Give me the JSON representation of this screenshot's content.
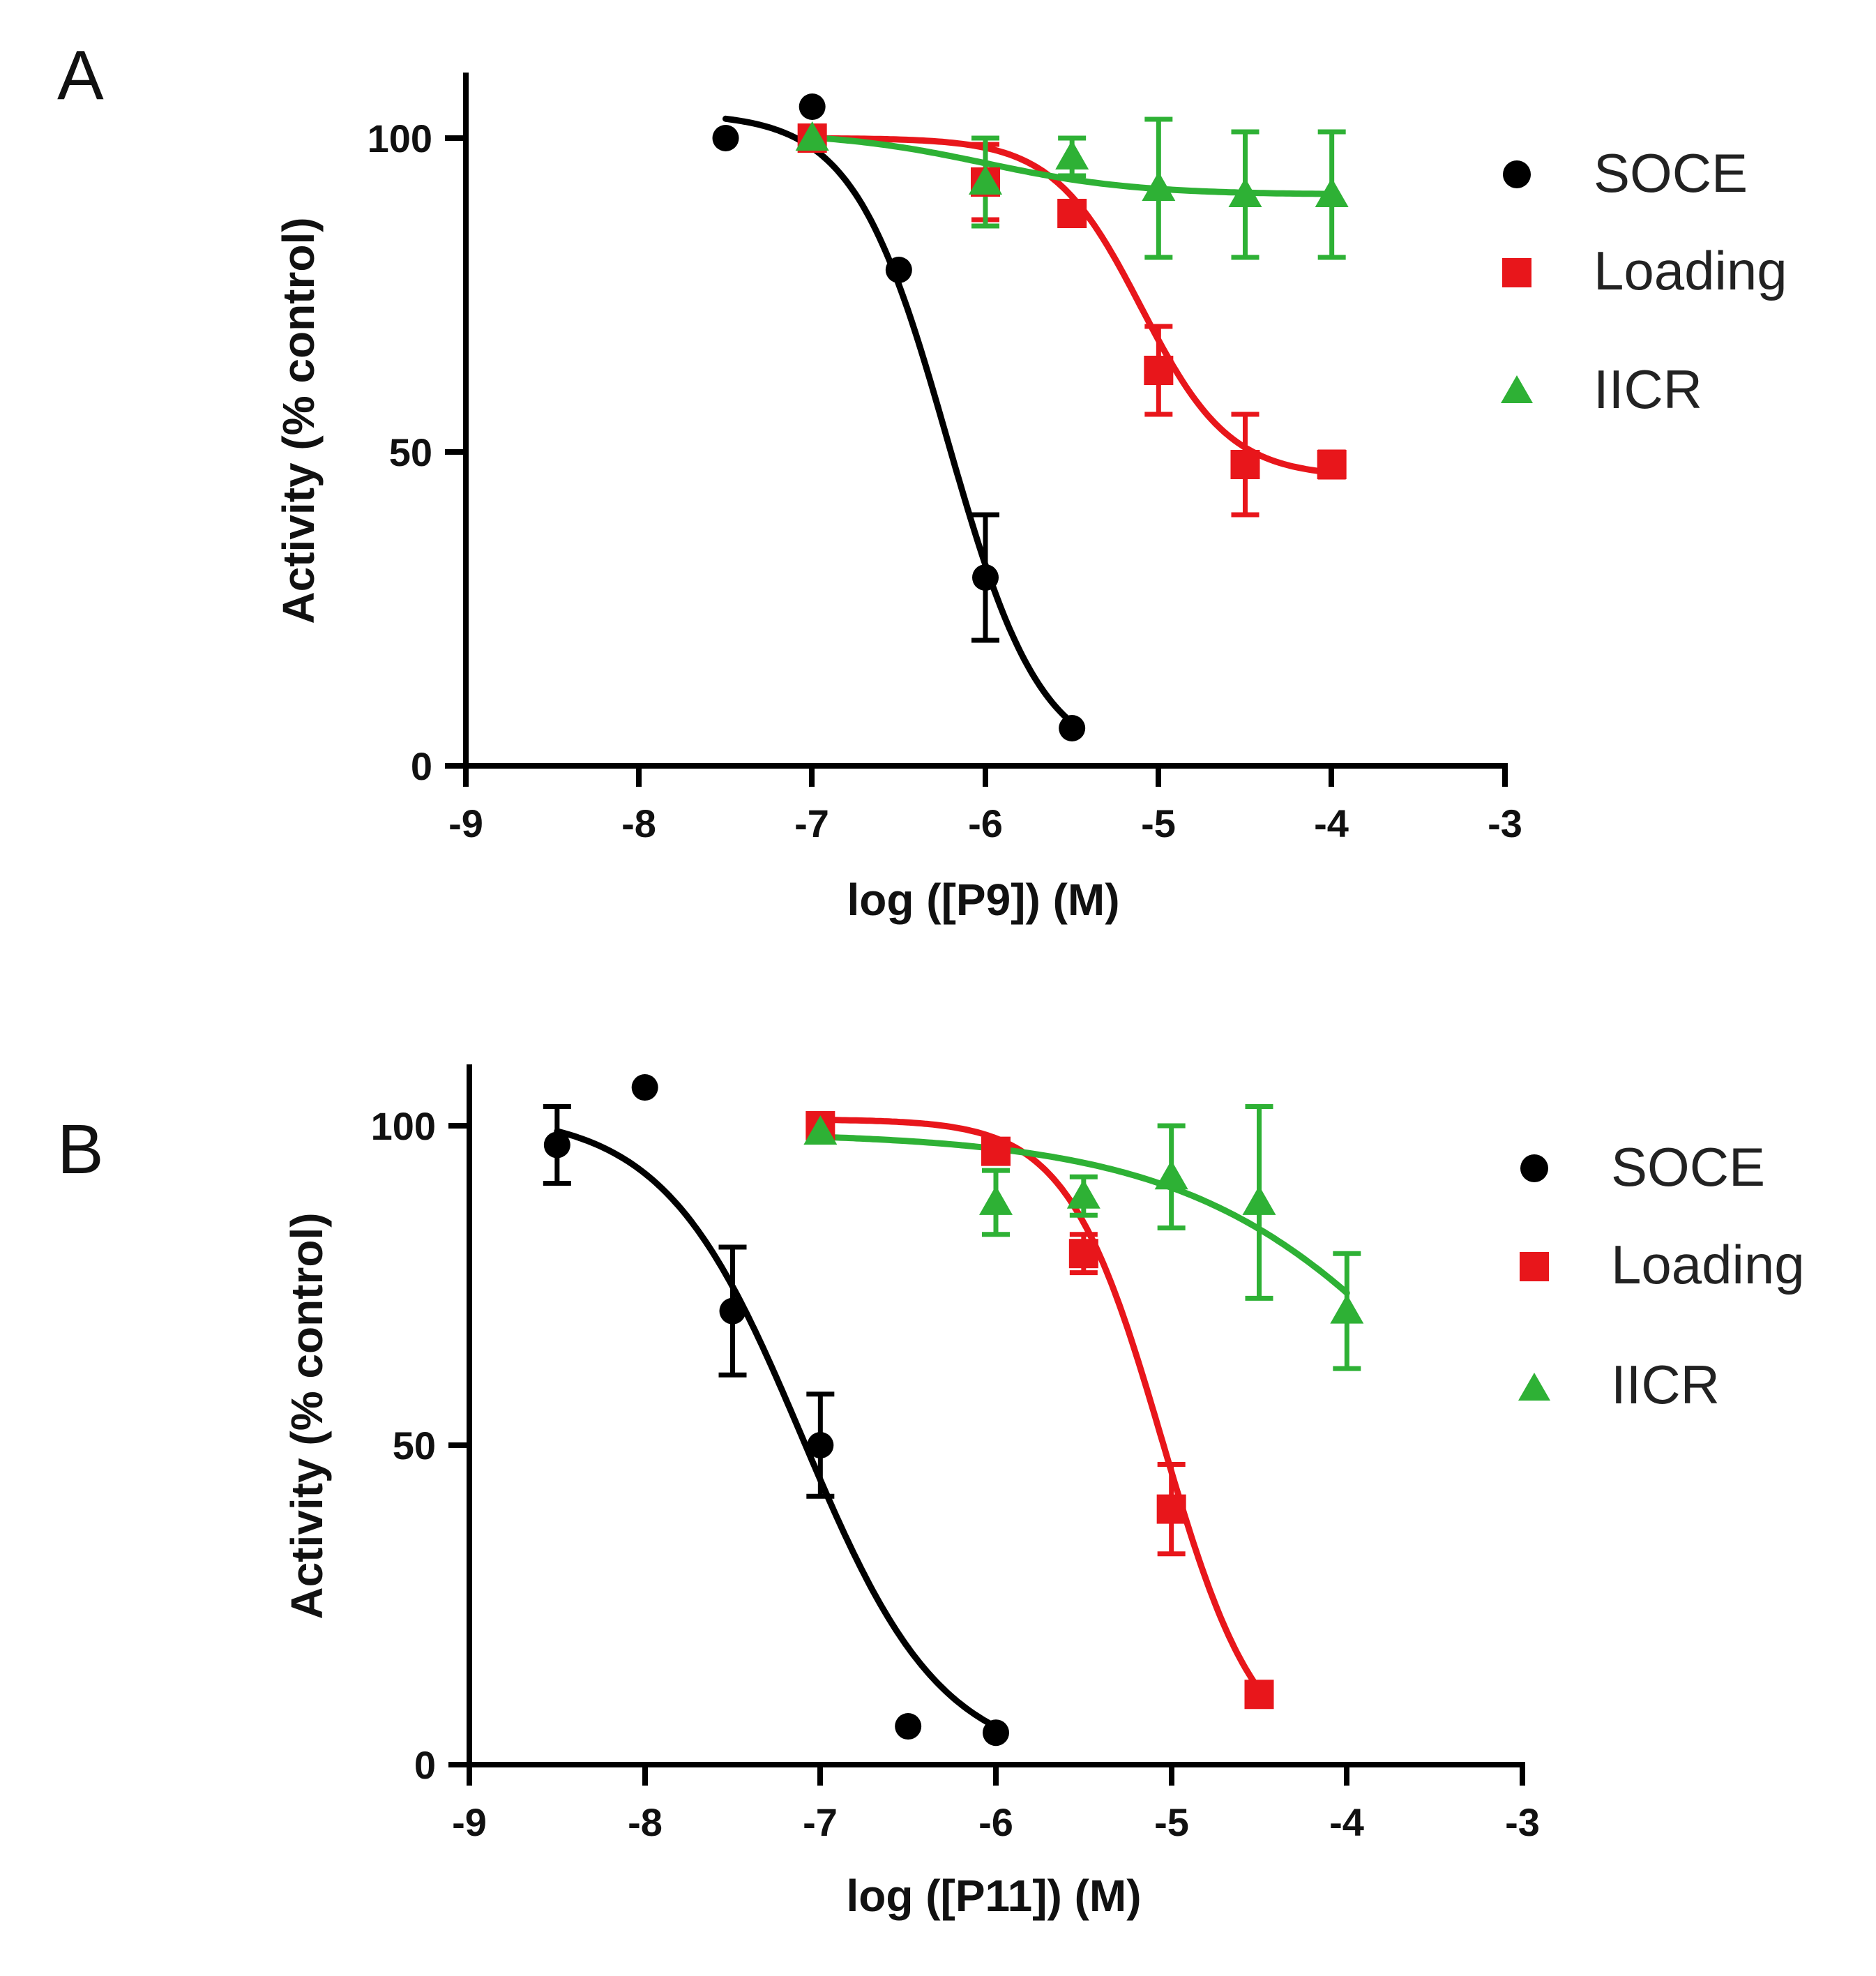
{
  "chart_data": [
    {
      "panel": "A",
      "type": "scatter",
      "xlabel": "log ([P9]) (M)",
      "ylabel": "Activity (% control)",
      "xlim": [
        -9,
        -3
      ],
      "ylim": [
        0,
        110
      ],
      "xticks": [
        -9,
        -8,
        -7,
        -6,
        -5,
        -4,
        -3
      ],
      "yticks": [
        0,
        50,
        100
      ],
      "legend_position": "right",
      "series": [
        {
          "name": "SOCE",
          "color": "#000000",
          "marker": "circle",
          "x": [
            -7.5,
            -7.0,
            -6.5,
            -6.0,
            -5.5
          ],
          "y": [
            100,
            105,
            79,
            30,
            6
          ],
          "err": [
            0,
            0,
            0,
            10,
            0
          ],
          "fit": {
            "top": 104,
            "bottom": 0,
            "logIC50": -6.22,
            "hill": 1.6
          }
        },
        {
          "name": "Loading",
          "color": "#e8161b",
          "marker": "square",
          "x": [
            -7.0,
            -6.0,
            -5.5,
            -5.0,
            -4.5,
            -4.0
          ],
          "y": [
            100,
            93,
            88,
            63,
            48,
            48
          ],
          "err": [
            0,
            6,
            0,
            7,
            8,
            2
          ],
          "fit": {
            "top": 100,
            "bottom": 46,
            "logIC50": -5.1,
            "hill": 1.7
          }
        },
        {
          "name": "IICR",
          "color": "#2eb135",
          "marker": "triangle",
          "x": [
            -7.0,
            -6.0,
            -5.5,
            -5.0,
            -4.5,
            -4.0
          ],
          "y": [
            100,
            93,
            97,
            92,
            91,
            91
          ],
          "err": [
            0,
            7,
            3,
            11,
            10,
            10
          ],
          "fit": {
            "top": 101,
            "bottom": 91,
            "logIC50": -6.0,
            "hill": 1.0
          }
        }
      ]
    },
    {
      "panel": "B",
      "type": "scatter",
      "xlabel": "log ([P11]) (M)",
      "ylabel": "Activity (% control)",
      "xlim": [
        -9,
        -3
      ],
      "ylim": [
        0,
        110
      ],
      "xticks": [
        -9,
        -8,
        -7,
        -6,
        -5,
        -4,
        -3
      ],
      "yticks": [
        0,
        50,
        100
      ],
      "legend_position": "right",
      "series": [
        {
          "name": "SOCE",
          "color": "#000000",
          "marker": "circle",
          "x": [
            -8.5,
            -8.0,
            -7.5,
            -7.0,
            -6.5,
            -6.0
          ],
          "y": [
            97,
            106,
            71,
            50,
            6,
            5
          ],
          "err": [
            6,
            0,
            10,
            8,
            0,
            0
          ],
          "fit": {
            "top": 102,
            "bottom": 0,
            "logIC50": -7.1,
            "hill": 1.1
          }
        },
        {
          "name": "Loading",
          "color": "#e8161b",
          "marker": "square",
          "x": [
            -7.0,
            -6.0,
            -5.5,
            -5.0,
            -4.5
          ],
          "y": [
            100,
            96,
            80,
            40,
            11
          ],
          "err": [
            0,
            0,
            3,
            7,
            0
          ],
          "fit": {
            "top": 101,
            "bottom": 0,
            "logIC50": -5.05,
            "hill": 1.6
          }
        },
        {
          "name": "IICR",
          "color": "#2eb135",
          "marker": "triangle",
          "x": [
            -7.0,
            -6.0,
            -5.5,
            -5.0,
            -4.5,
            -4.0
          ],
          "y": [
            99,
            88,
            89,
            92,
            88,
            71
          ],
          "err": [
            0,
            5,
            3,
            8,
            15,
            9
          ],
          "fit": {
            "top": 99,
            "bottom": 0,
            "logIC50": -3.15,
            "hill": 0.55
          }
        }
      ]
    }
  ]
}
